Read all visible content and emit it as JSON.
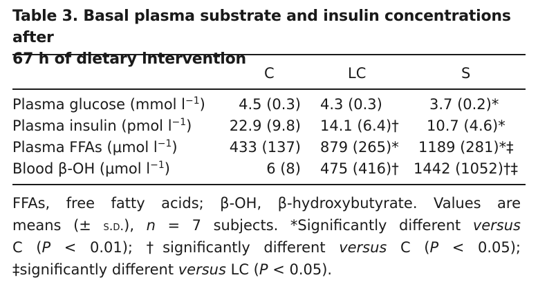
{
  "table": {
    "caption_line1": "Table 3.  Basal plasma substrate and insulin concentrations after",
    "caption_line2": "67 h of dietary intervention",
    "columns": [
      "C",
      "LC",
      "S"
    ],
    "rows": [
      {
        "label": "Plasma glucose (mmol l",
        "exp": "−1",
        "close": ")",
        "c": "4.5 (0.3)",
        "lc": "4.3 (0.3)",
        "s": "3.7 (0.2)*"
      },
      {
        "label": "Plasma insulin (pmol l",
        "exp": "−1",
        "close": ")",
        "c": "22.9 (9.8)",
        "lc": "14.1 (6.4)†",
        "s": "10.7 (4.6)*"
      },
      {
        "label": "Plasma FFAs (μmol l",
        "exp": "−1",
        "close": ")",
        "c": "433 (137)",
        "lc": "879 (265)*",
        "s": "1189 (281)*‡"
      },
      {
        "label": "Blood β-OH (μmol l",
        "exp": "−1",
        "close": ")",
        "c": "6 (8)",
        "lc": "475 (416)†",
        "s": "1442 (1052)†‡"
      }
    ]
  },
  "footnote": {
    "l1": "FFAs, free fatty acids; β-OH, β-hydroxybutyrate. Values are",
    "l2a": "means (±",
    "l2sd": "s.d.",
    "l2b": "), ",
    "l2n": "n",
    "l2c": " = 7 subjects. *Significantly different ",
    "l2v": "versus",
    "l3a": "C (",
    "l3p": "P",
    "l3b": " < 0.01); †significantly different ",
    "l3v": "versus",
    "l3c": " C (",
    "l3p2": "P",
    "l3d": " < 0.05);",
    "l4a": "‡significantly different ",
    "l4v": "versus",
    "l4b": " LC (",
    "l4p": "P",
    "l4c": " < 0.05)."
  }
}
